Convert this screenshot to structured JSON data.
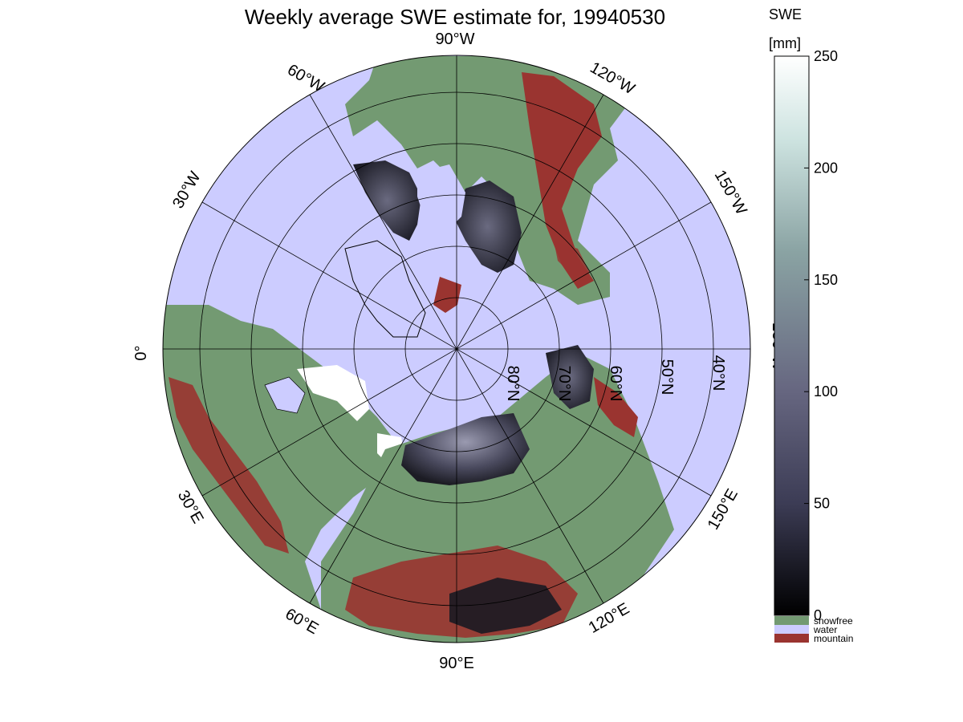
{
  "title": "Weekly average SWE estimate for, 19940530",
  "colorbar": {
    "label_line1": "SWE",
    "label_line2": "[mm]",
    "ticks": [
      0,
      50,
      100,
      150,
      200,
      250
    ],
    "range": [
      0,
      250
    ],
    "classes": [
      {
        "label": "snowfree",
        "color": "#739a72"
      },
      {
        "label": "water",
        "color": "#ccccff"
      },
      {
        "label": "mountain",
        "color": "#9a3430"
      }
    ],
    "gradient_colors": [
      "#000000",
      "#3c3c55",
      "#666680",
      "#8aa3a3",
      "#cde3e0",
      "#ffffff"
    ]
  },
  "map": {
    "projection": "north-polar",
    "latitude_circle_labels": [
      "80°N",
      "70°N",
      "60°N",
      "50°N",
      "40°N"
    ],
    "longitude_labels": [
      {
        "id": "lon-0",
        "text": "0°"
      },
      {
        "id": "lon-30e",
        "text": "30°E"
      },
      {
        "id": "lon-60e",
        "text": "60°E"
      },
      {
        "id": "lon-90e",
        "text": "90°E"
      },
      {
        "id": "lon-120e",
        "text": "120°E"
      },
      {
        "id": "lon-150e",
        "text": "150°E"
      },
      {
        "id": "lon-180w",
        "text": "180°W"
      },
      {
        "id": "lon-150w",
        "text": "150°W"
      },
      {
        "id": "lon-120w",
        "text": "120°W"
      },
      {
        "id": "lon-90w",
        "text": "90°W"
      },
      {
        "id": "lon-60w",
        "text": "60°W"
      },
      {
        "id": "lon-30w",
        "text": "30°W"
      }
    ],
    "colors": {
      "water": "#ccccff",
      "snowfree": "#739a72",
      "mountain": "#9a3430",
      "deep_snow": "#1a1a22",
      "mid_snow": "#55556a"
    }
  }
}
